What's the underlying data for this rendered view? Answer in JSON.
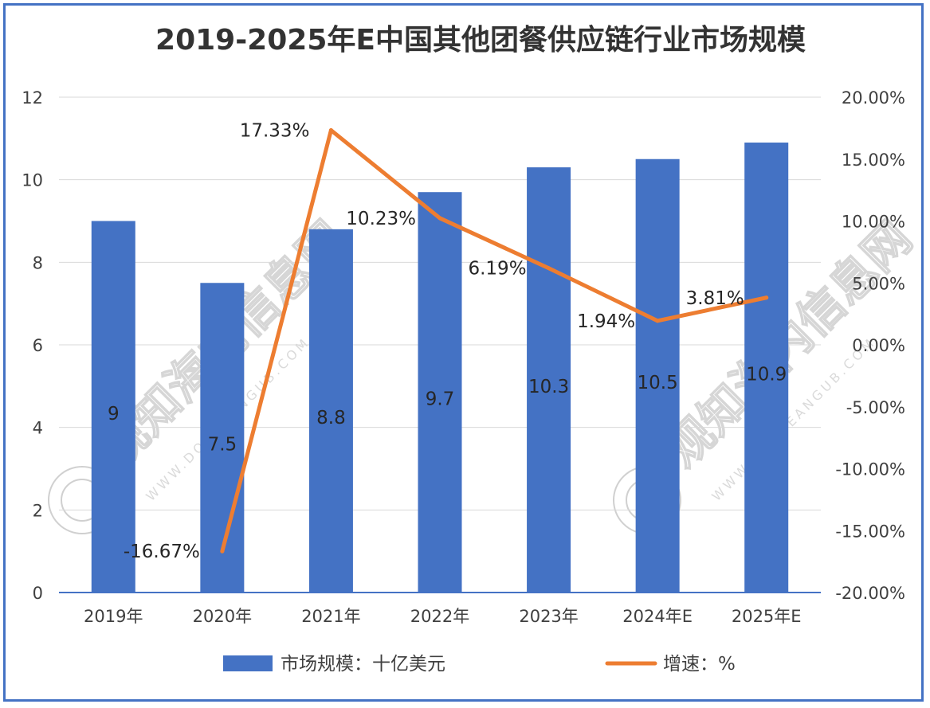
{
  "chart_data": {
    "type": "bar+line",
    "title": "2019-2025年E中国其他团餐供应链行业市场规模",
    "categories": [
      "2019年",
      "2020年",
      "2021年",
      "2022年",
      "2023年",
      "2024年E",
      "2025年E"
    ],
    "series": [
      {
        "name": "市场规模：十亿美元",
        "type": "bar",
        "axis": "left",
        "values": [
          9,
          7.5,
          8.8,
          9.7,
          10.3,
          10.5,
          10.9
        ],
        "labels": [
          "9",
          "7.5",
          "8.8",
          "9.7",
          "10.3",
          "10.5",
          "10.9"
        ],
        "color": "#4472c4"
      },
      {
        "name": "增速：%",
        "type": "line",
        "axis": "right",
        "values": [
          null,
          -16.67,
          17.33,
          10.23,
          6.19,
          1.94,
          3.81
        ],
        "labels": [
          "",
          "-16.67%",
          "17.33%",
          "10.23%",
          "6.19%",
          "1.94%",
          "3.81%"
        ],
        "color": "#ed7d31"
      }
    ],
    "left_axis": {
      "ylim": [
        0,
        12
      ],
      "ticks": [
        "0",
        "2",
        "4",
        "6",
        "8",
        "10",
        "12"
      ]
    },
    "right_axis": {
      "ylim": [
        -20,
        20
      ],
      "ticks": [
        "-20.00%",
        "-15.00%",
        "-10.00%",
        "-5.00%",
        "0.00%",
        "5.00%",
        "10.00%",
        "15.00%",
        "20.00%"
      ]
    },
    "grid": true,
    "legend_position": "bottom"
  },
  "watermark": {
    "text": "观知海内信息网",
    "url": "WWW.DONGEANGUB.COM"
  }
}
